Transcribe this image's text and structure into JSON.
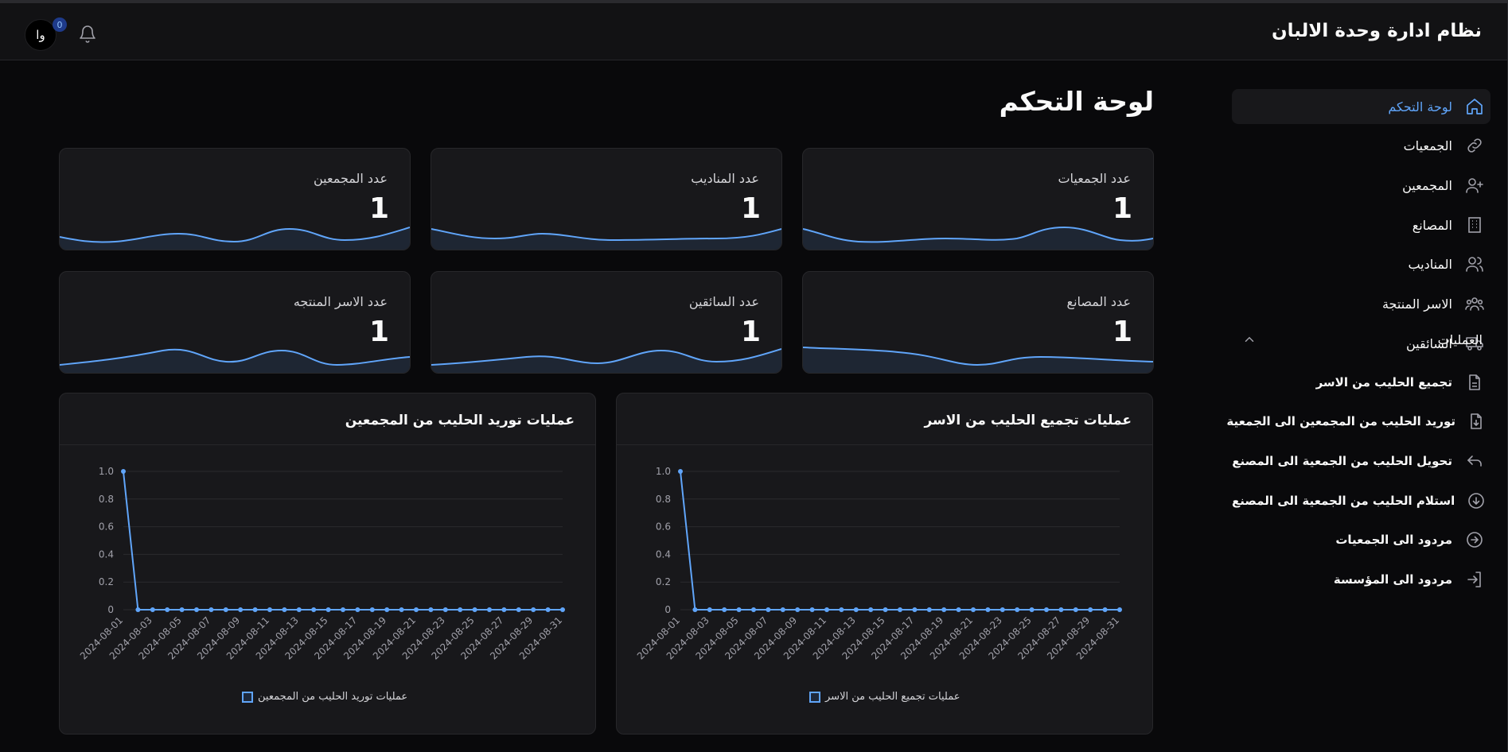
{
  "header": {
    "app_title": "نظام ادارة وحدة الالبان",
    "avatar_initials": "وا",
    "notification_count": "0"
  },
  "sidebar": {
    "items": [
      {
        "label": "لوحة التحكم",
        "icon": "home-icon",
        "active": true
      },
      {
        "label": "الجمعيات",
        "icon": "link-icon"
      },
      {
        "label": "المجمعين",
        "icon": "user-plus-icon"
      },
      {
        "label": "المصانع",
        "icon": "building-icon"
      },
      {
        "label": "المناديب",
        "icon": "users-icon"
      },
      {
        "label": "الاسر المنتجة",
        "icon": "group-icon"
      },
      {
        "label": "السائقين",
        "icon": "truck-icon"
      }
    ],
    "operations_title": "العمليات",
    "operations": [
      {
        "label": "تجميع الحليب من الاسر",
        "icon": "file-icon"
      },
      {
        "label": "توريد الحليب من المجمعين الى الجمعية",
        "icon": "download-file-icon"
      },
      {
        "label": "تحويل الحليب من الجمعية الى المصنع",
        "icon": "undo-arrow-icon"
      },
      {
        "label": "استلام الحليب من الجمعية الى المصنع",
        "icon": "arrow-down-circle-icon"
      },
      {
        "label": "مردود الى الجمعيات",
        "icon": "arrow-right-circle-icon"
      },
      {
        "label": "مردود الى المؤسسة",
        "icon": "login-icon"
      }
    ]
  },
  "main": {
    "page_title": "لوحة التحكم",
    "stats": [
      {
        "label": "عدد الجمعيات",
        "value": "1"
      },
      {
        "label": "عدد المناديب",
        "value": "1"
      },
      {
        "label": "عدد المجمعين",
        "value": "1"
      },
      {
        "label": "عدد المصانع",
        "value": "1"
      },
      {
        "label": "عدد السائقين",
        "value": "1"
      },
      {
        "label": "عدد الاسر المنتجه",
        "value": "1"
      }
    ]
  },
  "colors": {
    "accent": "#60a5fa",
    "background": "#09090b",
    "card": "#18181b",
    "border": "#27272a"
  },
  "chart_data": [
    {
      "type": "line",
      "title": "عمليات تجميع الحليب من الاسر",
      "x": [
        "2024-08-01",
        "2024-08-02",
        "2024-08-03",
        "2024-08-04",
        "2024-08-05",
        "2024-08-06",
        "2024-08-07",
        "2024-08-08",
        "2024-08-09",
        "2024-08-10",
        "2024-08-11",
        "2024-08-12",
        "2024-08-13",
        "2024-08-14",
        "2024-08-15",
        "2024-08-16",
        "2024-08-17",
        "2024-08-18",
        "2024-08-19",
        "2024-08-20",
        "2024-08-21",
        "2024-08-22",
        "2024-08-23",
        "2024-08-24",
        "2024-08-25",
        "2024-08-26",
        "2024-08-27",
        "2024-08-28",
        "2024-08-29",
        "2024-08-30",
        "2024-08-31"
      ],
      "x_tick_labels": [
        "2024-08-01",
        "2024-08-03",
        "2024-08-05",
        "2024-08-07",
        "2024-08-09",
        "2024-08-11",
        "2024-08-13",
        "2024-08-15",
        "2024-08-17",
        "2024-08-19",
        "2024-08-21",
        "2024-08-23",
        "2024-08-25",
        "2024-08-27",
        "2024-08-29",
        "2024-08-31"
      ],
      "y_tick_labels": [
        "0",
        "0.2",
        "0.4",
        "0.6",
        "0.8",
        "1.0"
      ],
      "series": [
        {
          "name": "عمليات تجميع الحليب من الاسر",
          "values": [
            1,
            0,
            0,
            0,
            0,
            0,
            0,
            0,
            0,
            0,
            0,
            0,
            0,
            0,
            0,
            0,
            0,
            0,
            0,
            0,
            0,
            0,
            0,
            0,
            0,
            0,
            0,
            0,
            0,
            0,
            0
          ]
        }
      ],
      "ylim": [
        0,
        1
      ],
      "grid": true,
      "legend": "bottom"
    },
    {
      "type": "line",
      "title": "عمليات توريد الحليب من المجمعين",
      "x": [
        "2024-08-01",
        "2024-08-02",
        "2024-08-03",
        "2024-08-04",
        "2024-08-05",
        "2024-08-06",
        "2024-08-07",
        "2024-08-08",
        "2024-08-09",
        "2024-08-10",
        "2024-08-11",
        "2024-08-12",
        "2024-08-13",
        "2024-08-14",
        "2024-08-15",
        "2024-08-16",
        "2024-08-17",
        "2024-08-18",
        "2024-08-19",
        "2024-08-20",
        "2024-08-21",
        "2024-08-22",
        "2024-08-23",
        "2024-08-24",
        "2024-08-25",
        "2024-08-26",
        "2024-08-27",
        "2024-08-28",
        "2024-08-29",
        "2024-08-30",
        "2024-08-31"
      ],
      "x_tick_labels": [
        "2024-08-01",
        "2024-08-03",
        "2024-08-05",
        "2024-08-07",
        "2024-08-09",
        "2024-08-11",
        "2024-08-13",
        "2024-08-15",
        "2024-08-17",
        "2024-08-19",
        "2024-08-21",
        "2024-08-23",
        "2024-08-25",
        "2024-08-27",
        "2024-08-29",
        "2024-08-31"
      ],
      "y_tick_labels": [
        "0",
        "0.2",
        "0.4",
        "0.6",
        "0.8",
        "1.0"
      ],
      "series": [
        {
          "name": "عمليات توريد الحليب من المجمعين",
          "values": [
            1,
            0,
            0,
            0,
            0,
            0,
            0,
            0,
            0,
            0,
            0,
            0,
            0,
            0,
            0,
            0,
            0,
            0,
            0,
            0,
            0,
            0,
            0,
            0,
            0,
            0,
            0,
            0,
            0,
            0,
            0
          ]
        }
      ],
      "ylim": [
        0,
        1
      ],
      "grid": true,
      "legend": "bottom"
    }
  ]
}
